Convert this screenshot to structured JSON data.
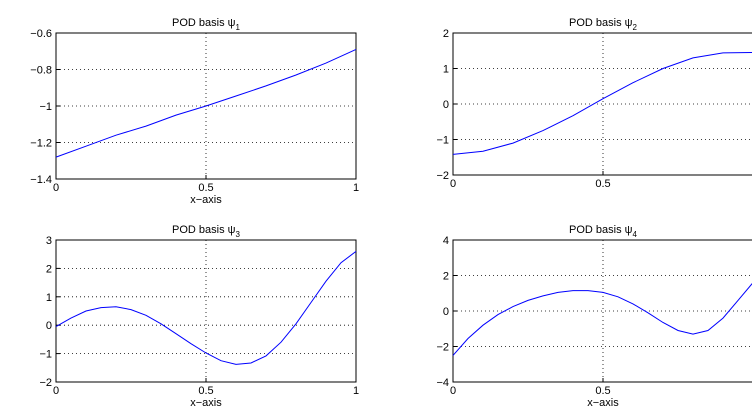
{
  "chart_data": [
    {
      "type": "line",
      "title_prefix": "POD basis ψ",
      "title_subscript": "1",
      "xlabel": "x−axis",
      "xlim": [
        0,
        1
      ],
      "ylim": [
        -1.4,
        -0.6
      ],
      "xticks": [
        "0",
        "0.5",
        "1"
      ],
      "yticks": [
        "−0.6",
        "−0.8",
        "−1",
        "−1.2",
        "−1.4"
      ],
      "grid": true,
      "line_color": "#0000ff",
      "series": [
        {
          "x": [
            0,
            0.1,
            0.2,
            0.3,
            0.4,
            0.5,
            0.6,
            0.7,
            0.8,
            0.9,
            1.0
          ],
          "y": [
            -1.28,
            -1.22,
            -1.16,
            -1.11,
            -1.05,
            -1.0,
            -0.945,
            -0.89,
            -0.83,
            -0.765,
            -0.69
          ]
        }
      ]
    },
    {
      "type": "line",
      "title_prefix": "POD basis ψ",
      "title_subscript": "2",
      "xlabel": "",
      "xlim": [
        0,
        1
      ],
      "ylim": [
        -2,
        2
      ],
      "xticks": [
        "0",
        "0.5",
        ""
      ],
      "yticks": [
        "2",
        "1",
        "0",
        "−1",
        "−2"
      ],
      "grid": true,
      "line_color": "#0000ff",
      "series": [
        {
          "x": [
            0,
            0.1,
            0.2,
            0.3,
            0.4,
            0.5,
            0.6,
            0.7,
            0.8,
            0.9,
            1.0
          ],
          "y": [
            -1.42,
            -1.33,
            -1.1,
            -0.75,
            -0.33,
            0.15,
            0.6,
            1.0,
            1.3,
            1.44,
            1.45
          ]
        }
      ]
    },
    {
      "type": "line",
      "title_prefix": "POD basis ψ",
      "title_subscript": "3",
      "xlabel": "x−axis",
      "xlim": [
        0,
        1
      ],
      "ylim": [
        -2,
        3
      ],
      "xticks": [
        "0",
        "0.5",
        "1"
      ],
      "yticks": [
        "3",
        "2",
        "1",
        "0",
        "−1",
        "−2"
      ],
      "grid": true,
      "line_color": "#0000ff",
      "series": [
        {
          "x": [
            0,
            0.05,
            0.1,
            0.15,
            0.2,
            0.25,
            0.3,
            0.35,
            0.4,
            0.45,
            0.5,
            0.55,
            0.6,
            0.65,
            0.7,
            0.75,
            0.8,
            0.85,
            0.9,
            0.95,
            1.0
          ],
          "y": [
            -0.05,
            0.25,
            0.5,
            0.62,
            0.65,
            0.55,
            0.35,
            0.05,
            -0.3,
            -0.65,
            -0.98,
            -1.25,
            -1.38,
            -1.33,
            -1.08,
            -0.6,
            0.05,
            0.8,
            1.55,
            2.2,
            2.6
          ]
        }
      ]
    },
    {
      "type": "line",
      "title_prefix": "POD basis ψ",
      "title_subscript": "4",
      "xlabel": "x−axis",
      "xlim": [
        0,
        1
      ],
      "ylim": [
        -4,
        4
      ],
      "xticks": [
        "0",
        "0.5",
        ""
      ],
      "yticks": [
        "4",
        "2",
        "0",
        "−2",
        "−4"
      ],
      "grid": true,
      "line_color": "#0000ff",
      "series": [
        {
          "x": [
            0,
            0.05,
            0.1,
            0.15,
            0.2,
            0.25,
            0.3,
            0.35,
            0.4,
            0.45,
            0.5,
            0.55,
            0.6,
            0.65,
            0.7,
            0.75,
            0.8,
            0.85,
            0.9,
            0.95,
            1.0
          ],
          "y": [
            -2.5,
            -1.55,
            -0.8,
            -0.2,
            0.25,
            0.6,
            0.85,
            1.05,
            1.15,
            1.15,
            1.05,
            0.8,
            0.4,
            -0.1,
            -0.65,
            -1.1,
            -1.3,
            -1.1,
            -0.4,
            0.6,
            1.6
          ]
        }
      ]
    }
  ]
}
